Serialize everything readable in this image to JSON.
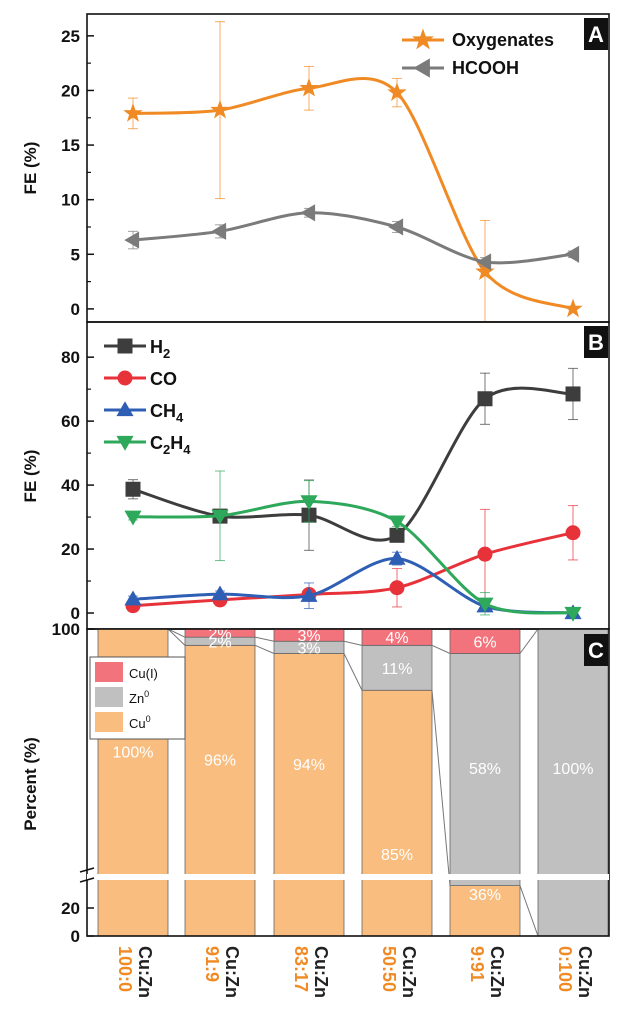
{
  "colors": {
    "oxygenates": "#f08a24",
    "hcooh": "#7b7b7b",
    "h2": "#3d3d3d",
    "co": "#e8323a",
    "ch4": "#2f5fb4",
    "c2h4": "#2ea85a",
    "cu_i": "#f3737c",
    "zn0": "#c0c0c0",
    "cu0": "#f9bd7f",
    "cat_ratio": "#f08a24",
    "cat_prefix": "#222222"
  },
  "chart_data": [
    {
      "panel": "A",
      "type": "line",
      "ylabel": "FE (%)",
      "ylim": [
        -1.2,
        27
      ],
      "yticks": [
        0,
        5,
        10,
        15,
        20,
        25
      ],
      "legend_position": "top-right",
      "series": [
        {
          "name": "Oxygenates",
          "key": "oxygenates",
          "marker": "star",
          "values": [
            17.9,
            18.2,
            20.2,
            19.8,
            3.4,
            0.0
          ],
          "err": [
            1.4,
            8.1,
            2.0,
            1.3,
            4.7,
            0.0
          ]
        },
        {
          "name": "HCOOH",
          "key": "hcooh",
          "marker": "triangle-left",
          "values": [
            6.3,
            7.1,
            8.8,
            7.5,
            4.3,
            5.0
          ],
          "err": [
            0.8,
            0.6,
            0.4,
            0.5,
            0.4,
            0.3
          ]
        }
      ]
    },
    {
      "panel": "B",
      "type": "line",
      "ylabel": "FE (%)",
      "ylim": [
        -5,
        91
      ],
      "yticks": [
        0,
        20,
        40,
        60,
        80
      ],
      "legend_position": "top-left",
      "series": [
        {
          "name": "H",
          "sub": "2",
          "key": "h2",
          "marker": "square",
          "values": [
            38.7,
            30.3,
            30.6,
            24.3,
            67.0,
            68.5
          ],
          "err": [
            3.0,
            2.0,
            11.0,
            2.0,
            8.0,
            8.0
          ]
        },
        {
          "name": "CO",
          "sub": "",
          "key": "co",
          "marker": "circle",
          "values": [
            2.3,
            4.1,
            5.8,
            7.9,
            18.4,
            25.1
          ],
          "err": [
            1.0,
            1.0,
            1.5,
            6.0,
            14.0,
            8.5
          ]
        },
        {
          "name": "CH",
          "sub": "4",
          "key": "ch4",
          "marker": "triangle-up",
          "values": [
            4.3,
            5.9,
            5.4,
            17.0,
            2.1,
            0.0
          ],
          "err": [
            1.0,
            1.0,
            4.0,
            2.0,
            1.0,
            0.0
          ]
        },
        {
          "name": "C",
          "sub": "2",
          "name2": "H",
          "sub2": "4",
          "key": "c2h4",
          "marker": "triangle-down",
          "values": [
            30.1,
            30.4,
            34.9,
            28.6,
            2.9,
            0.0
          ],
          "err": [
            1.0,
            14.0,
            6.5,
            1.5,
            3.5,
            0.0
          ]
        }
      ]
    },
    {
      "panel": "C",
      "type": "bar",
      "stacked": true,
      "ylabel": "Percent (%)",
      "yticks_lower": [
        0,
        20
      ],
      "ytick_upper": 100,
      "categories_prefix": "Cu:Zn",
      "categories": [
        "100:0",
        "91:9",
        "83:17",
        "50:50",
        "9:91",
        "0:100"
      ],
      "legend_position": "top-left",
      "series": [
        {
          "name": "Cu",
          "sup": "0",
          "key": "cu0",
          "values": [
            100,
            96,
            94,
            85,
            36,
            0
          ],
          "labels": [
            "100%",
            "96%",
            "94%",
            "85%",
            "36%",
            ""
          ]
        },
        {
          "name": "Zn",
          "sup": "0",
          "key": "zn0",
          "values": [
            0,
            2,
            3,
            11,
            58,
            100
          ],
          "labels": [
            "",
            "2%",
            "3%",
            "11%",
            "58%",
            "100%"
          ]
        },
        {
          "name": "Cu(I)",
          "sup": "",
          "key": "cu_i",
          "values": [
            0,
            2,
            3,
            4,
            6,
            0
          ],
          "labels": [
            "",
            "2%",
            "3%",
            "4%",
            "6%",
            ""
          ]
        }
      ]
    }
  ],
  "panel_labels": [
    "A",
    "B",
    "C"
  ]
}
